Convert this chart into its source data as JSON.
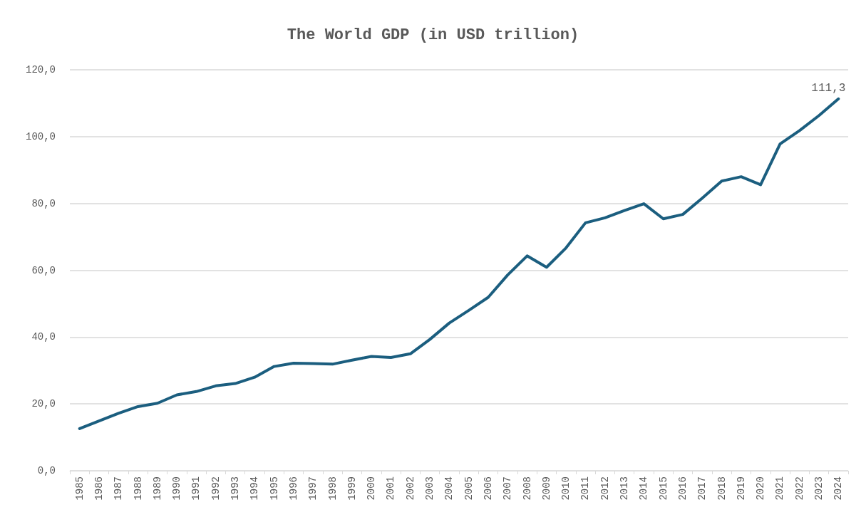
{
  "chart_data": {
    "type": "line",
    "title": "The World GDP (in USD trillion)",
    "categories": [
      "1985",
      "1986",
      "1987",
      "1988",
      "1989",
      "1990",
      "1991",
      "1992",
      "1993",
      "1994",
      "1995",
      "1996",
      "1997",
      "1998",
      "1999",
      "2000",
      "2001",
      "2002",
      "2003",
      "2004",
      "2005",
      "2006",
      "2007",
      "2008",
      "2009",
      "2010",
      "2011",
      "2012",
      "2013",
      "2014",
      "2015",
      "2016",
      "2017",
      "2018",
      "2019",
      "2020",
      "2021",
      "2022",
      "2023",
      "2024"
    ],
    "series": [
      {
        "color": "#1b5e7f",
        "values": [
          12.6,
          14.9,
          17.2,
          19.2,
          20.2,
          22.7,
          23.7,
          25.4,
          26.1,
          28.0,
          31.2,
          32.2,
          32.1,
          31.9,
          33.1,
          34.2,
          33.9,
          35.0,
          39.3,
          44.2,
          48.0,
          51.9,
          58.6,
          64.3,
          60.9,
          66.7,
          74.2,
          75.7,
          77.9,
          79.9,
          75.4,
          76.7,
          81.6,
          86.7,
          88.0,
          85.6,
          97.8,
          101.8,
          106.3,
          111.3
        ],
        "value_labels": [
          null,
          null,
          null,
          null,
          null,
          null,
          null,
          null,
          null,
          null,
          null,
          null,
          null,
          null,
          null,
          null,
          null,
          null,
          null,
          null,
          null,
          null,
          null,
          null,
          null,
          null,
          null,
          null,
          null,
          null,
          null,
          null,
          null,
          null,
          null,
          null,
          null,
          null,
          null,
          "111,3"
        ]
      }
    ],
    "ylim": [
      0,
      120
    ],
    "yticks": [
      {
        "value": 0,
        "label": "0,0"
      },
      {
        "value": 20,
        "label": "20,0"
      },
      {
        "value": 40,
        "label": "40,0"
      },
      {
        "value": 60,
        "label": "60,0"
      },
      {
        "value": 80,
        "label": "80,0"
      },
      {
        "value": 100,
        "label": "100,0"
      },
      {
        "value": 120,
        "label": "120,0"
      }
    ],
    "grid": "y",
    "marker": "none",
    "line_style": "solid"
  }
}
